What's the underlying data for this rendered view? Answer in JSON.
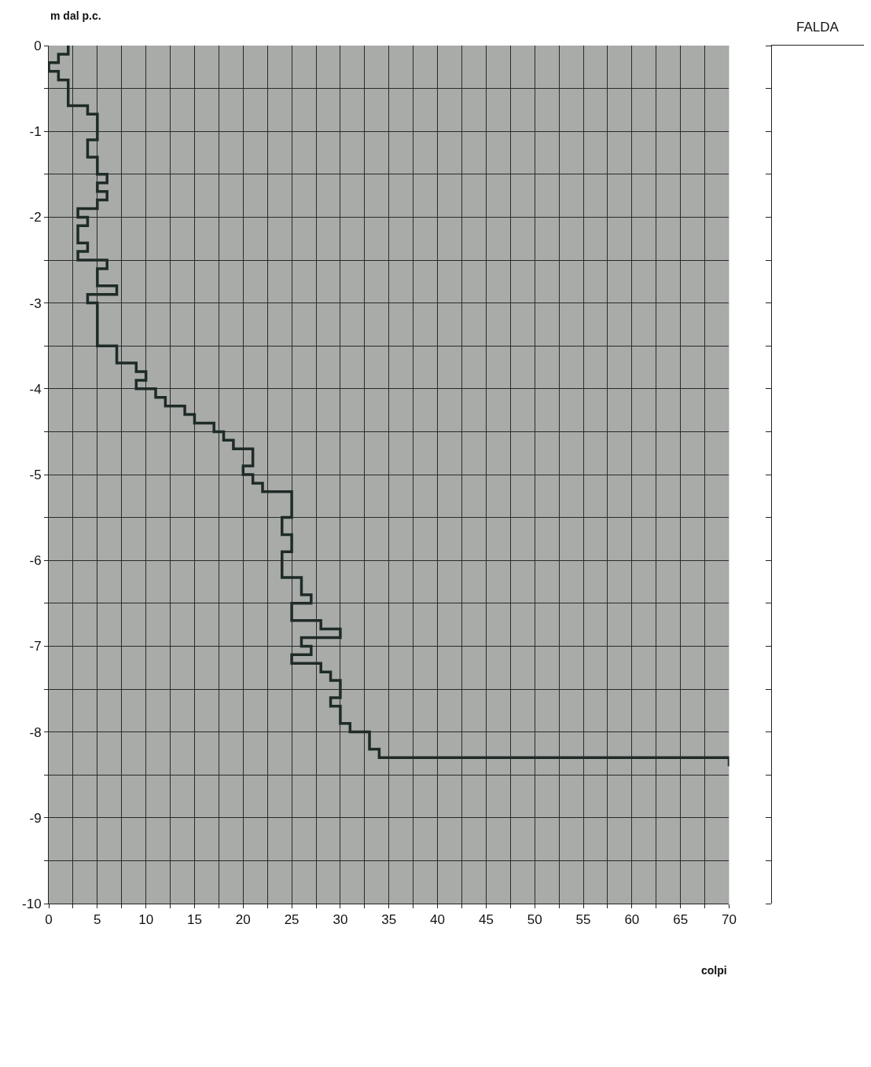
{
  "chart_data": [
    {
      "type": "step",
      "xlabel": "colpi",
      "ylabel": "m dal p.c.",
      "series": [
        {
          "color": "#1e2b27",
          "x": [
            2,
            1,
            0,
            1,
            2,
            2,
            2,
            4,
            5,
            5,
            5,
            4,
            4,
            5,
            5,
            6,
            5,
            6,
            5,
            3,
            4,
            3,
            3,
            4,
            3,
            6,
            5,
            5,
            7,
            4,
            5,
            5,
            5,
            5,
            5,
            7,
            7,
            9,
            10,
            9,
            11,
            12,
            14,
            15,
            17,
            18,
            19,
            21,
            21,
            20,
            21,
            22,
            25,
            25,
            25,
            24,
            24,
            25,
            25,
            24,
            24,
            24,
            26,
            26,
            27,
            25,
            25,
            28,
            30,
            26,
            27,
            25,
            28,
            29,
            30,
            30,
            29,
            30,
            30,
            31,
            33,
            33,
            34,
            70,
            70
          ],
          "values": [
            0,
            -0.1,
            -0.2,
            -0.3,
            -0.4,
            -0.5,
            -0.6,
            -0.7,
            -0.8,
            -0.9,
            -1.0,
            -1.1,
            -1.2,
            -1.3,
            -1.4,
            -1.5,
            -1.6,
            -1.7,
            -1.8,
            -1.9,
            -2.0,
            -2.1,
            -2.2,
            -2.3,
            -2.4,
            -2.5,
            -2.6,
            -2.7,
            -2.8,
            -2.9,
            -3.0,
            -3.1,
            -3.2,
            -3.3,
            -3.4,
            -3.5,
            -3.6,
            -3.7,
            -3.8,
            -3.9,
            -4.0,
            -4.1,
            -4.2,
            -4.3,
            -4.4,
            -4.5,
            -4.6,
            -4.7,
            -4.8,
            -4.9,
            -5.0,
            -5.1,
            -5.2,
            -5.3,
            -5.4,
            -5.5,
            -5.6,
            -5.7,
            -5.8,
            -5.9,
            -6.0,
            -6.1,
            -6.2,
            -6.3,
            -6.4,
            -6.5,
            -6.6,
            -6.7,
            -6.8,
            -6.9,
            -7.0,
            -7.1,
            -7.2,
            -7.3,
            -7.4,
            -7.5,
            -7.6,
            -7.7,
            -7.8,
            -7.9,
            -8.0,
            -8.1,
            -8.2,
            -8.3,
            -8.4
          ]
        }
      ],
      "xlim": [
        0,
        70
      ],
      "xticks": [
        0,
        {
          "value": 2.5,
          "label": null
        },
        5,
        {
          "value": 7.5,
          "label": null
        },
        10,
        {
          "value": 12.5,
          "label": null
        },
        15,
        {
          "value": 17.5,
          "label": null
        },
        20,
        {
          "value": 22.5,
          "label": null
        },
        25,
        {
          "value": 27.5,
          "label": null
        },
        30,
        {
          "value": 32.5,
          "label": null
        },
        35,
        {
          "value": 37.5,
          "label": null
        },
        40,
        {
          "value": 42.5,
          "label": null
        },
        45,
        {
          "value": 47.5,
          "label": null
        },
        50,
        {
          "value": 52.5,
          "label": null
        },
        55,
        {
          "value": 57.5,
          "label": null
        },
        60,
        {
          "value": 62.5,
          "label": null
        },
        65,
        {
          "value": 67.5,
          "label": null
        },
        70
      ],
      "ylim": [
        -10,
        0
      ],
      "yticks": [
        0,
        {
          "value": -0.5,
          "label": null
        },
        -1,
        {
          "value": -1.5,
          "label": null
        },
        -2,
        {
          "value": -2.5,
          "label": null
        },
        -3,
        {
          "value": -3.5,
          "label": null
        },
        -4,
        {
          "value": -4.5,
          "label": null
        },
        -5,
        {
          "value": -5.5,
          "label": null
        },
        -6,
        {
          "value": -6.5,
          "label": null
        },
        -7,
        {
          "value": -7.5,
          "label": null
        },
        -8,
        {
          "value": -8.5,
          "label": null
        },
        -9,
        {
          "value": -9.5,
          "label": null
        },
        -10
      ],
      "grid": true,
      "marker": "none",
      "line_style": "solid"
    },
    {
      "type": "other",
      "title": "FALDA"
    }
  ]
}
